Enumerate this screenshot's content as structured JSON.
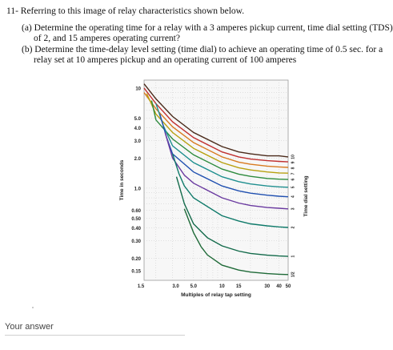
{
  "question": {
    "title": "11- Referring to this image of relay characteristics shown below.",
    "part_a_line1": "(a)  Determine the operating time for a relay with a 3 amperes pickup current, time dial setting (TDS)",
    "part_a_line2": "of 2, and 15 amperes operating current?",
    "part_b_line1": "(b)  Determine the time-delay level setting (time dial) to achieve an  operating time of 0.5 sec. for a",
    "part_b_line2": "relay set at 10 amperes pickup and an operating current of 100 amperes"
  },
  "answer": {
    "label": "Your answer"
  },
  "chart_data": {
    "type": "line",
    "xlabel": "Multiples of relay tap setting",
    "ylabel": "Time in seconds",
    "right_label": "Time dial setting",
    "x_scale": "log",
    "y_scale": "log",
    "xlim": [
      1.5,
      50
    ],
    "ylim": [
      0.12,
      12
    ],
    "grid": true,
    "x_ticks": [
      "1.5",
      "3.0",
      "5.0",
      "10",
      "15",
      "30",
      "40",
      "50"
    ],
    "x_tick_values": [
      1.5,
      3.0,
      5.0,
      10,
      15,
      30,
      40,
      50
    ],
    "y_ticks": [
      "10",
      "5.0",
      "4.0",
      "3.0",
      "2.0",
      "1.0",
      "0.60",
      "0.50",
      "0.40",
      "0.30",
      "0.20",
      "0.15"
    ],
    "y_tick_values": [
      10,
      5.0,
      4.0,
      3.0,
      2.0,
      1.0,
      0.6,
      0.5,
      0.4,
      0.3,
      0.2,
      0.15
    ],
    "series": [
      {
        "name": "10",
        "color": "#4a2a1a",
        "x": [
          1.5,
          2,
          3,
          5,
          10,
          15,
          20,
          30,
          40,
          50
        ],
        "y": [
          11.0,
          7.8,
          5.2,
          3.6,
          2.6,
          2.3,
          2.2,
          2.1,
          2.1,
          2.05
        ]
      },
      {
        "name": "9",
        "color": "#c03030",
        "x": [
          1.5,
          2,
          3,
          5,
          10,
          15,
          20,
          30,
          40,
          50
        ],
        "y": [
          10.0,
          7.0,
          4.6,
          3.2,
          2.3,
          2.05,
          1.95,
          1.88,
          1.85,
          1.83
        ]
      },
      {
        "name": "8",
        "color": "#d87a20",
        "x": [
          1.5,
          2,
          3,
          5,
          10,
          15,
          20,
          30,
          40,
          50
        ],
        "y": [
          9.0,
          6.2,
          4.1,
          2.85,
          2.05,
          1.82,
          1.73,
          1.66,
          1.63,
          1.61
        ]
      },
      {
        "name": "7",
        "color": "#b8a010",
        "x": [
          1.6,
          2,
          3,
          5,
          10,
          15,
          20,
          30,
          40,
          50
        ],
        "y": [
          8.8,
          5.5,
          3.6,
          2.5,
          1.8,
          1.6,
          1.52,
          1.45,
          1.42,
          1.41
        ]
      },
      {
        "name": "6",
        "color": "#2e8b3e",
        "x": [
          1.8,
          2,
          3,
          5,
          10,
          15,
          20,
          30,
          40,
          50
        ],
        "y": [
          7.5,
          4.8,
          3.1,
          2.15,
          1.55,
          1.38,
          1.31,
          1.25,
          1.23,
          1.22
        ]
      },
      {
        "name": "5",
        "color": "#1f8f8f",
        "x": [
          2.0,
          2.4,
          3,
          5,
          10,
          15,
          20,
          30,
          40,
          50
        ],
        "y": [
          7.0,
          4.2,
          2.65,
          1.8,
          1.3,
          1.16,
          1.1,
          1.05,
          1.03,
          1.02
        ]
      },
      {
        "name": "4",
        "color": "#2050b0",
        "x": [
          2.2,
          2.6,
          3,
          5,
          10,
          15,
          20,
          30,
          40,
          50
        ],
        "y": [
          5.5,
          3.2,
          2.2,
          1.45,
          1.05,
          0.94,
          0.89,
          0.85,
          0.83,
          0.82
        ]
      },
      {
        "name": "3",
        "color": "#6a3aa0",
        "x": [
          2.5,
          3,
          4,
          5,
          10,
          15,
          20,
          30,
          40,
          50
        ],
        "y": [
          3.6,
          2.0,
          1.35,
          1.12,
          0.8,
          0.71,
          0.67,
          0.64,
          0.63,
          0.62
        ]
      },
      {
        "name": "2",
        "color": "#0f7a6a",
        "x": [
          3,
          3.5,
          4,
          5,
          10,
          15,
          20,
          30,
          40,
          50
        ],
        "y": [
          2.2,
          1.4,
          1.05,
          0.8,
          0.53,
          0.47,
          0.44,
          0.42,
          0.41,
          0.405
        ]
      },
      {
        "name": "1",
        "color": "#126a4a",
        "x": [
          3.3,
          4,
          5,
          7,
          10,
          15,
          20,
          30,
          40,
          50
        ],
        "y": [
          1.3,
          0.7,
          0.44,
          0.32,
          0.265,
          0.235,
          0.223,
          0.214,
          0.21,
          0.208
        ]
      },
      {
        "name": "1/2",
        "color": "#1f6a38",
        "x": [
          4,
          5,
          6,
          7,
          10,
          15,
          20,
          30,
          40,
          50
        ],
        "y": [
          0.62,
          0.36,
          0.26,
          0.215,
          0.17,
          0.152,
          0.145,
          0.14,
          0.138,
          0.137
        ]
      }
    ]
  }
}
